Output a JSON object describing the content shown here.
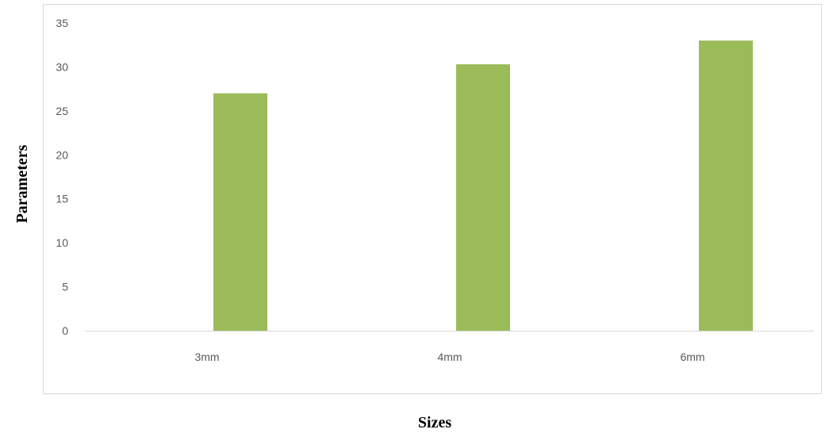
{
  "chart_data": {
    "type": "bar",
    "title": "",
    "xlabel": "Sizes",
    "ylabel": "Parameters",
    "categories": [
      "3mm",
      "4mm",
      "6mm"
    ],
    "series": [
      {
        "values": [
          27,
          30.3,
          33
        ],
        "color": "#9bbb59"
      }
    ],
    "ylim": [
      0,
      35
    ],
    "yticks": [
      0,
      5,
      10,
      15,
      20,
      25,
      30,
      35
    ],
    "grid": false,
    "legend": "none"
  }
}
